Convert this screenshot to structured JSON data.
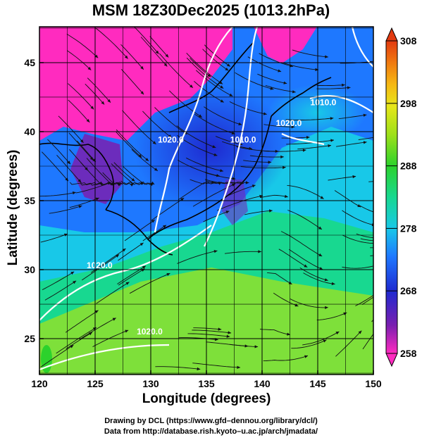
{
  "title": "MSM 18Z30Dec2025 (1013.2hPa)",
  "x_axis": {
    "label": "Longitude (degrees)",
    "ticks": [
      "120",
      "125",
      "130",
      "135",
      "140",
      "145",
      "150"
    ],
    "range": [
      120,
      150
    ]
  },
  "y_axis": {
    "label": "Latitude  (degrees)",
    "ticks": [
      "25",
      "30",
      "35",
      "40",
      "45"
    ],
    "range": [
      22.4,
      47.6
    ]
  },
  "colorbar": {
    "ticks": [
      "258",
      "268",
      "278",
      "288",
      "298",
      "308"
    ],
    "range": [
      258,
      308
    ],
    "colors": [
      "#ff2bbf",
      "#7a1fb0",
      "#1e2ad0",
      "#1e78ff",
      "#18c8e8",
      "#18d890",
      "#2cd22c",
      "#9ee01a",
      "#e6e61a",
      "#f5b814",
      "#f07a10",
      "#e23a10"
    ]
  },
  "contours": [
    {
      "label": "1020.0",
      "lon": 131.8,
      "lat": 39.2
    },
    {
      "label": "1010.0",
      "lon": 138.3,
      "lat": 39.2
    },
    {
      "label": "1020.0",
      "lon": 125.4,
      "lat": 30.1
    },
    {
      "label": "1010.0",
      "lon": 145.5,
      "lat": 41.9
    },
    {
      "label": "1020.0",
      "lon": 142.4,
      "lat": 40.4
    },
    {
      "label": "1020.0",
      "lon": 129.9,
      "lat": 25.3
    }
  ],
  "credits": {
    "line1": "Drawing by DCL (https://www.gfd–dennou.org/library/dcl/)",
    "line2": "Data from http://database.rish.kyoto–u.ac.jp/arch/jmadata/"
  }
}
